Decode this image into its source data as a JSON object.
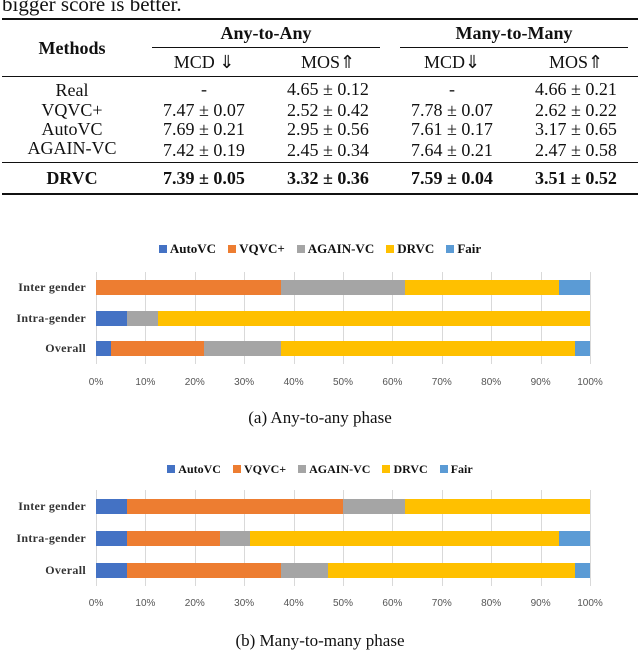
{
  "intro_text": "bigger score is better.",
  "table": {
    "methods_header": "Methods",
    "groups": [
      "Any-to-Any",
      "Many-to-Many"
    ],
    "subheaders": [
      "MCD ⇓",
      "MOS⇑",
      "MCD⇓",
      "MOS⇑"
    ],
    "rows": [
      {
        "method": "Real",
        "cells": [
          "-",
          "4.65 ± 0.12",
          "-",
          "4.66 ± 0.21"
        ]
      },
      {
        "method": "VQVC+",
        "cells": [
          "7.47 ± 0.07",
          "2.52 ± 0.42",
          "7.78 ± 0.07",
          "2.62 ± 0.22"
        ]
      },
      {
        "method": "AutoVC",
        "cells": [
          "7.69 ± 0.21",
          "2.95 ± 0.56",
          "7.61 ± 0.17",
          "3.17 ± 0.65"
        ]
      },
      {
        "method": "AGAIN-VC",
        "cells": [
          "7.42 ± 0.19",
          "2.45 ± 0.34",
          "7.64 ± 0.21",
          "2.47 ± 0.58"
        ]
      }
    ],
    "highlight_row": {
      "method": "DRVC",
      "cells": [
        "7.39 ± 0.05",
        "3.32 ± 0.36",
        "7.59 ± 0.04",
        "3.51 ± 0.52"
      ]
    }
  },
  "colors": {
    "AutoVC": "#4472c4",
    "VQVC+": "#ed7d31",
    "AGAIN-VC": "#a5a5a5",
    "DRVC": "#ffc000",
    "Fair": "#5b9bd5",
    "grid": "#d9d9d9"
  },
  "chart_data": [
    {
      "type": "bar",
      "orientation": "horizontal",
      "stacked": "percent",
      "title": "",
      "caption": "(a)  Any-to-any phase",
      "categories": [
        "Inter gender",
        "Intra-gender",
        "Overall"
      ],
      "series": [
        {
          "name": "AutoVC",
          "values": [
            0,
            6.25,
            3.1
          ]
        },
        {
          "name": "VQVC+",
          "values": [
            37.5,
            0,
            18.8
          ]
        },
        {
          "name": "AGAIN-VC",
          "values": [
            25.0,
            6.25,
            15.6
          ]
        },
        {
          "name": "DRVC",
          "values": [
            31.25,
            87.5,
            59.4
          ]
        },
        {
          "name": "Fair",
          "values": [
            6.25,
            0,
            3.1
          ]
        }
      ],
      "xticks": [
        "0%",
        "10%",
        "20%",
        "30%",
        "40%",
        "50%",
        "60%",
        "70%",
        "80%",
        "90%",
        "100%"
      ],
      "xlim": [
        0,
        100
      ],
      "grid": true,
      "legend_position": "top",
      "xlabel": "",
      "ylabel": ""
    },
    {
      "type": "bar",
      "orientation": "horizontal",
      "stacked": "percent",
      "title": "",
      "caption": "(b)  Many-to-many phase",
      "categories": [
        "Inter gender",
        "Intra-gender",
        "Overall"
      ],
      "series": [
        {
          "name": "AutoVC",
          "values": [
            6.25,
            6.25,
            6.25
          ]
        },
        {
          "name": "VQVC+",
          "values": [
            43.75,
            18.75,
            31.25
          ]
        },
        {
          "name": "AGAIN-VC",
          "values": [
            12.5,
            6.25,
            9.4
          ]
        },
        {
          "name": "DRVC",
          "values": [
            37.5,
            62.5,
            50.0
          ]
        },
        {
          "name": "Fair",
          "values": [
            0,
            6.25,
            3.1
          ]
        }
      ],
      "xticks": [
        "0%",
        "10%",
        "20%",
        "30%",
        "40%",
        "50%",
        "60%",
        "70%",
        "80%",
        "90%",
        "100%"
      ],
      "xlim": [
        0,
        100
      ],
      "grid": true,
      "legend_position": "top",
      "xlabel": "",
      "ylabel": ""
    }
  ]
}
